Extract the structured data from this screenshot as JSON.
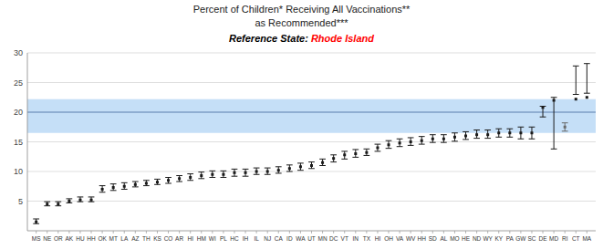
{
  "chart_data": {
    "type": "errorbar",
    "title": "Percent of Children* Receiving All Vaccinations**",
    "subtitle": "as Recommended***",
    "annotations": [
      {
        "text": "Reference State: ",
        "color": "black"
      },
      {
        "text": "Rhode Island",
        "color": "red"
      }
    ],
    "categories": [
      "MS",
      "NE",
      "OR",
      "AK",
      "HU",
      "HH",
      "OK",
      "MT",
      "LA",
      "AZ",
      "TH",
      "KS",
      "CO",
      "AR",
      "HI",
      "HM",
      "WI",
      "PL",
      "HC",
      "IH",
      "IL",
      "NJ",
      "CA",
      "ID",
      "WA",
      "UT",
      "MN",
      "DC",
      "VT",
      "IN",
      "TX",
      "HI",
      "OH",
      "VA",
      "WV",
      "HH",
      "SD",
      "AL",
      "MO",
      "HE",
      "ND",
      "WY",
      "KY",
      "PA",
      "GW",
      "SC",
      "DE",
      "MD",
      "RI",
      "CT",
      "MA"
    ],
    "values": [
      1.5,
      4.5,
      4.5,
      5.0,
      5.2,
      5.2,
      7.0,
      7.3,
      7.5,
      7.8,
      8.0,
      8.2,
      8.5,
      8.8,
      9.0,
      9.3,
      9.5,
      9.5,
      9.8,
      9.8,
      10.0,
      10.0,
      10.2,
      10.5,
      10.8,
      11.0,
      11.5,
      12.2,
      12.8,
      13.0,
      13.2,
      14.0,
      14.5,
      14.8,
      15.0,
      15.2,
      15.5,
      15.5,
      15.8,
      16.0,
      16.2,
      16.2,
      16.5,
      16.5,
      16.5,
      16.5,
      20.8,
      22.0,
      17.5,
      22.2,
      22.5
    ],
    "lows": [
      1.2,
      4.2,
      4.2,
      4.7,
      4.9,
      4.9,
      6.5,
      6.8,
      7.0,
      7.4,
      7.6,
      7.8,
      8.0,
      8.3,
      8.5,
      8.8,
      9.0,
      9.0,
      9.2,
      9.2,
      9.5,
      9.5,
      9.7,
      10.0,
      10.2,
      10.5,
      11.0,
      11.6,
      12.1,
      12.4,
      12.7,
      13.4,
      13.9,
      14.2,
      14.4,
      14.6,
      14.9,
      14.9,
      15.1,
      15.4,
      15.6,
      15.6,
      15.8,
      15.8,
      15.5,
      15.5,
      19.2,
      13.8,
      16.8,
      23.0,
      23.2
    ],
    "highs": [
      2.0,
      4.9,
      4.9,
      5.4,
      5.7,
      5.7,
      7.6,
      7.9,
      8.1,
      8.3,
      8.5,
      8.7,
      9.0,
      9.3,
      9.6,
      9.9,
      10.1,
      10.1,
      10.4,
      10.4,
      10.6,
      10.6,
      10.8,
      11.1,
      11.4,
      11.6,
      12.1,
      12.8,
      13.4,
      13.7,
      13.8,
      14.6,
      15.2,
      15.5,
      15.7,
      15.9,
      16.2,
      16.2,
      16.5,
      16.7,
      17.0,
      17.0,
      17.2,
      17.2,
      17.5,
      17.5,
      21.0,
      22.5,
      18.2,
      27.8,
      28.2
    ],
    "colors": [
      "#1a1a1a",
      "#1a1a1a",
      "#1a1a1a",
      "#1a1a1a",
      "#1a1a1a",
      "#1a1a1a",
      "#1a1a1a",
      "#1a1a1a",
      "#1a1a1a",
      "#1a1a1a",
      "#1a1a1a",
      "#1a1a1a",
      "#1a1a1a",
      "#1a1a1a",
      "#1a1a1a",
      "#1a1a1a",
      "#1a1a1a",
      "#1a1a1a",
      "#1a1a1a",
      "#1a1a1a",
      "#1a1a1a",
      "#1a1a1a",
      "#1a1a1a",
      "#1a1a1a",
      "#1a1a1a",
      "#1a1a1a",
      "#1a1a1a",
      "#1a1a1a",
      "#1a1a1a",
      "#1a1a1a",
      "#1a1a1a",
      "#1a1a1a",
      "#1a1a1a",
      "#1a1a1a",
      "#1a1a1a",
      "#1a1a1a",
      "#1a1a1a",
      "#1a1a1a",
      "#1a1a1a",
      "#1a1a1a",
      "#1a1a1a",
      "#1a1a1a",
      "#1a1a1a",
      "#1a1a1a",
      "#1a1a1a",
      "#1a1a1a",
      "#1a1a1a",
      "#1a1a1a",
      "#696969",
      "#1a1a1a",
      "#1a1a1a"
    ],
    "marker": "square",
    "reference_band": {
      "low": 16.5,
      "high": 22.2,
      "color": "#c5dff7"
    },
    "reference_line": {
      "value": 20.0,
      "color": "#5b7fad"
    },
    "ylim": [
      0,
      30
    ],
    "yticks": [
      5,
      10,
      15,
      20,
      25,
      30
    ],
    "grid": true
  }
}
